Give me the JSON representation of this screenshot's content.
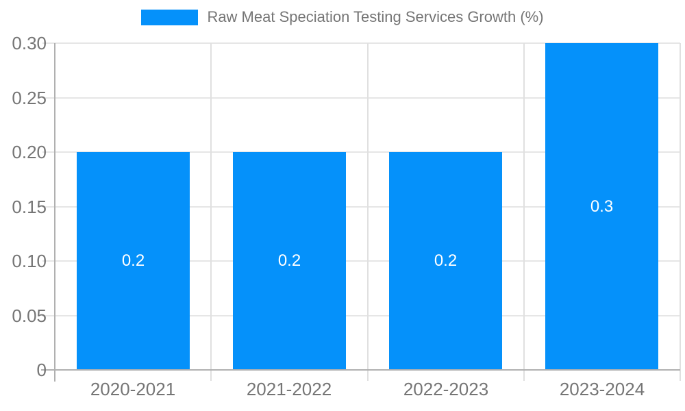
{
  "chart_data": {
    "type": "bar",
    "title": "Raw Meat Speciation Testing Services Growth (%)",
    "categories": [
      "2020-2021",
      "2021-2022",
      "2022-2023",
      "2023-2024"
    ],
    "values": [
      0.2,
      0.2,
      0.2,
      0.3
    ],
    "bar_labels": [
      "0.2",
      "0.2",
      "0.2",
      "0.3"
    ],
    "xlabel": "",
    "ylabel": "",
    "ylim": [
      0,
      0.3
    ],
    "yticks": [
      0,
      0.05,
      0.1,
      0.15,
      0.2,
      0.25,
      0.3
    ],
    "ytick_labels": [
      "0",
      "0.05",
      "0.10",
      "0.15",
      "0.20",
      "0.25",
      "0.30"
    ],
    "grid": "horizontal gridlines at y ticks, vertical gridlines at category boundaries",
    "legend_position": "top-center",
    "legend_entries": [
      "Raw Meat Speciation Testing Services Growth (%)"
    ]
  },
  "colors": {
    "bar": "#0591fa",
    "bar_label_text": "#ffffff",
    "axis_line": "#b0b0b0",
    "gridline_h": "#e6e6e6",
    "gridline_v": "#e0e0e0",
    "axis_text": "#757575",
    "legend_text": "#757575",
    "background": "#ffffff"
  }
}
